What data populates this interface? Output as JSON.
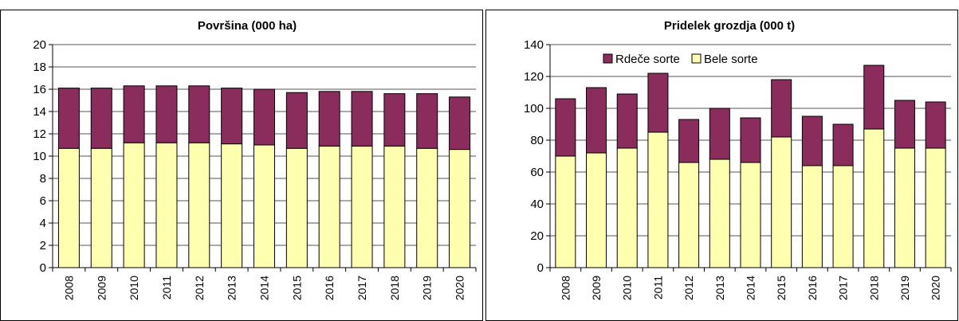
{
  "chart_data": [
    {
      "type": "bar",
      "stacked": true,
      "title": "Površina (000 ha)",
      "categories": [
        "2008",
        "2009",
        "2010",
        "2011",
        "2012",
        "2013",
        "2014",
        "2015",
        "2016",
        "2017",
        "2018",
        "2019",
        "2020"
      ],
      "series": [
        {
          "name": "Bele sorte",
          "color": "#FFFFB0",
          "values": [
            10.7,
            10.7,
            11.2,
            11.2,
            11.2,
            11.1,
            11.0,
            10.7,
            10.9,
            10.9,
            10.9,
            10.7,
            10.6
          ]
        },
        {
          "name": "Rdeče sorte",
          "color": "#8B2D5C",
          "values": [
            5.4,
            5.4,
            5.1,
            5.1,
            5.1,
            5.0,
            5.0,
            5.0,
            4.9,
            4.9,
            4.7,
            4.9,
            4.7
          ]
        }
      ],
      "ylim": [
        0,
        20
      ],
      "yticks": [
        0,
        2,
        4,
        6,
        8,
        10,
        12,
        14,
        16,
        18,
        20
      ],
      "legend": false,
      "grid": true
    },
    {
      "type": "bar",
      "stacked": true,
      "title": "Pridelek grozdja (000 t)",
      "categories": [
        "2008",
        "2009",
        "2010",
        "2011",
        "2012",
        "2013",
        "2014",
        "2015",
        "2016",
        "2017",
        "2018",
        "2019",
        "2020"
      ],
      "series": [
        {
          "name": "Bele sorte",
          "color": "#FFFFB0",
          "values": [
            70,
            72,
            75,
            85,
            66,
            68,
            66,
            82,
            64,
            64,
            87,
            75,
            75
          ]
        },
        {
          "name": "Rdeče sorte",
          "color": "#8B2D5C",
          "values": [
            36,
            41,
            34,
            37,
            27,
            32,
            28,
            36,
            31,
            26,
            40,
            30,
            29
          ]
        }
      ],
      "ylim": [
        0,
        140
      ],
      "yticks": [
        0,
        20,
        40,
        60,
        80,
        100,
        120,
        140
      ],
      "legend": true,
      "legend_order": [
        "Rdeče sorte",
        "Bele sorte"
      ],
      "legend_position": "top-center",
      "grid": true
    }
  ]
}
